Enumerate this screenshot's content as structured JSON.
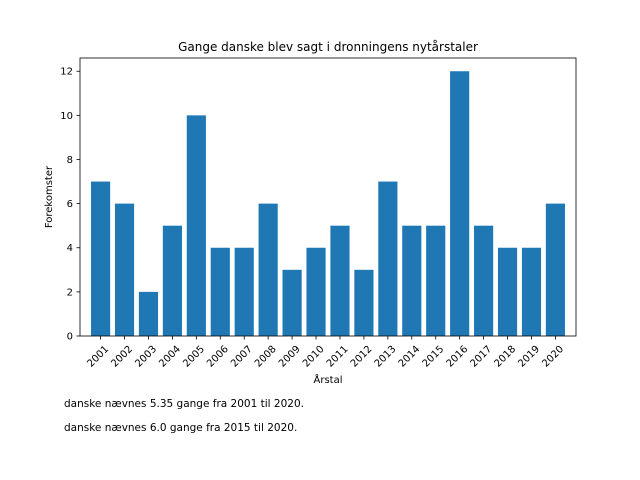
{
  "chart_data": {
    "type": "bar",
    "title": "Gange danske blev sagt i dronningens nytårstaler",
    "xlabel": "Årstal",
    "ylabel": "Forekomster",
    "categories": [
      "2001",
      "2002",
      "2003",
      "2004",
      "2005",
      "2006",
      "2007",
      "2008",
      "2009",
      "2010",
      "2011",
      "2012",
      "2013",
      "2014",
      "2015",
      "2016",
      "2017",
      "2018",
      "2019",
      "2020"
    ],
    "values": [
      7,
      6,
      2,
      5,
      10,
      4,
      4,
      6,
      3,
      4,
      5,
      3,
      7,
      5,
      5,
      12,
      5,
      4,
      4,
      6
    ],
    "ylim": [
      0,
      12.6
    ],
    "yticks": [
      "0",
      "2",
      "4",
      "6",
      "8",
      "10",
      "12"
    ],
    "bar_color": "#1f77b4",
    "grid": false
  },
  "notes": [
    "danske nævnes 5.35 gange fra 2001 til 2020.",
    "danske nævnes 6.0 gange fra 2015 til 2020."
  ]
}
